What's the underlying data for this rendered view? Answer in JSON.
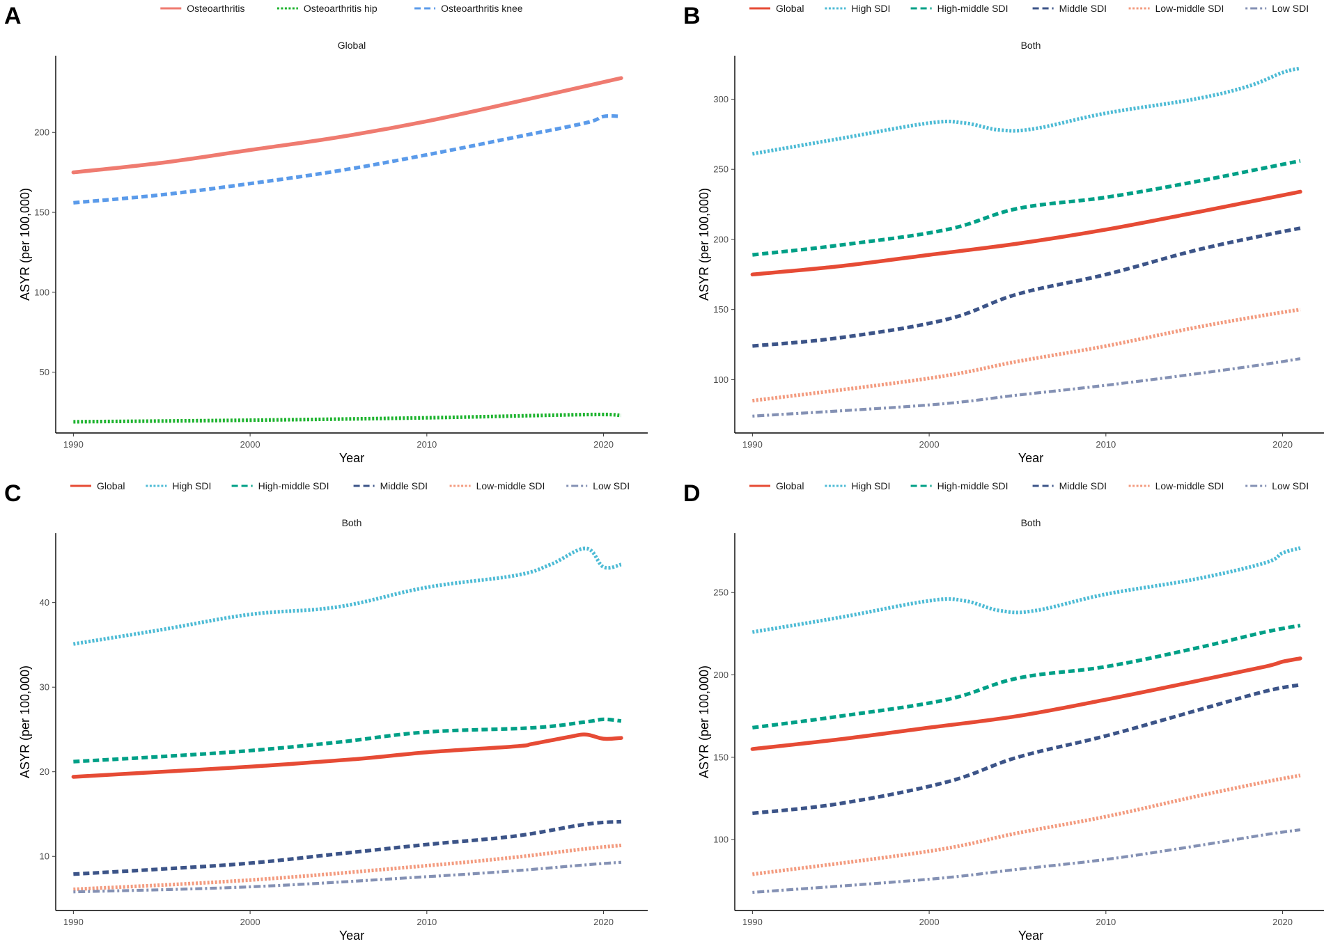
{
  "chart_data": [
    {
      "panel_label": "A",
      "type": "line",
      "facet_title": "Global",
      "xlabel": "Year",
      "ylabel": "ASYR (per 100,000)",
      "xlim": [
        1989,
        2022.5
      ],
      "ylim": [
        12,
        248
      ],
      "xticks": [
        1990,
        2000,
        2010,
        2020
      ],
      "yticks": [
        50,
        100,
        150,
        200
      ],
      "legend_position": "top",
      "series": [
        {
          "name": "Osteoarthritis",
          "color": "#ef7b70",
          "dash": "solid",
          "points": [
            [
              1990,
              175
            ],
            [
              1995,
              181
            ],
            [
              2000,
              189
            ],
            [
              2005,
              197
            ],
            [
              2010,
              207
            ],
            [
              2015,
              219
            ],
            [
              2019,
              229
            ],
            [
              2021,
              234
            ]
          ]
        },
        {
          "name": "Osteoarthritis hip",
          "color": "#1db32e",
          "dash": "dotted",
          "points": [
            [
              1990,
              19
            ],
            [
              2000,
              20
            ],
            [
              2010,
              21.5
            ],
            [
              2019,
              23.5
            ],
            [
              2021,
              23
            ]
          ]
        },
        {
          "name": "Osteoarthritis knee",
          "color": "#5b9bea",
          "dash": "dashed",
          "points": [
            [
              1990,
              156
            ],
            [
              1995,
              161
            ],
            [
              2000,
              168
            ],
            [
              2005,
              176
            ],
            [
              2010,
              186
            ],
            [
              2015,
              197
            ],
            [
              2019,
              206
            ],
            [
              2020,
              210
            ],
            [
              2021,
              210
            ]
          ]
        }
      ]
    },
    {
      "panel_label": "B",
      "type": "line",
      "facet_title": "Both",
      "xlabel": "Year",
      "ylabel": "ASYR (per 100,000)",
      "xlim": [
        1989,
        2022.5
      ],
      "ylim": [
        62,
        331
      ],
      "xticks": [
        1990,
        2000,
        2010,
        2020
      ],
      "yticks": [
        100,
        150,
        200,
        250,
        300
      ],
      "legend_position": "top",
      "series": [
        {
          "name": "Global",
          "color": "#e64b35",
          "dash": "solid",
          "points": [
            [
              1990,
              175
            ],
            [
              1995,
              181
            ],
            [
              2000,
              189
            ],
            [
              2005,
              197
            ],
            [
              2010,
              207
            ],
            [
              2015,
              219
            ],
            [
              2019,
              229
            ],
            [
              2021,
              234
            ]
          ]
        },
        {
          "name": "High SDI",
          "color": "#4dbbd5",
          "dash": "dotted",
          "points": [
            [
              1990,
              261
            ],
            [
              1995,
              272
            ],
            [
              2000,
              283
            ],
            [
              2002,
              283
            ],
            [
              2004,
              278
            ],
            [
              2006,
              279
            ],
            [
              2010,
              290
            ],
            [
              2015,
              300
            ],
            [
              2018,
              309
            ],
            [
              2020,
              319
            ],
            [
              2021,
              322
            ]
          ]
        },
        {
          "name": "High-middle SDI",
          "color": "#00a087",
          "dash": "dashed",
          "points": [
            [
              1990,
              189
            ],
            [
              1995,
              196
            ],
            [
              2001,
              207
            ],
            [
              2005,
              222
            ],
            [
              2010,
              230
            ],
            [
              2015,
              241
            ],
            [
              2019,
              251
            ],
            [
              2021,
              256
            ]
          ]
        },
        {
          "name": "Middle SDI",
          "color": "#3c5488",
          "dash": "dashed",
          "points": [
            [
              1990,
              124
            ],
            [
              1995,
              130
            ],
            [
              2001,
              143
            ],
            [
              2005,
              161
            ],
            [
              2010,
              175
            ],
            [
              2015,
              192
            ],
            [
              2019,
              203
            ],
            [
              2021,
              208
            ]
          ]
        },
        {
          "name": "Low-middle SDI",
          "color": "#f39b7f",
          "dash": "dotted",
          "points": [
            [
              1990,
              85
            ],
            [
              2000,
              101
            ],
            [
              2005,
              113
            ],
            [
              2010,
              124
            ],
            [
              2015,
              137
            ],
            [
              2019,
              146
            ],
            [
              2021,
              150
            ]
          ]
        },
        {
          "name": "Low SDI",
          "color": "#8491b4",
          "dash": "dotdash",
          "points": [
            [
              1990,
              74
            ],
            [
              2000,
              82
            ],
            [
              2005,
              89
            ],
            [
              2010,
              96
            ],
            [
              2015,
              104
            ],
            [
              2019,
              111
            ],
            [
              2021,
              115
            ]
          ]
        }
      ]
    },
    {
      "panel_label": "C",
      "type": "line",
      "facet_title": "Both",
      "xlabel": "Year",
      "ylabel": "ASYR (per 100,000)",
      "xlim": [
        1989,
        2022.5
      ],
      "ylim": [
        3.6,
        48.2
      ],
      "xticks": [
        1990,
        2000,
        2010,
        2020
      ],
      "yticks": [
        10,
        20,
        30,
        40
      ],
      "legend_position": "top",
      "series": [
        {
          "name": "Global",
          "color": "#e64b35",
          "dash": "solid",
          "points": [
            [
              1990,
              19.4
            ],
            [
              1995,
              20
            ],
            [
              2000,
              20.6
            ],
            [
              2006,
              21.5
            ],
            [
              2010,
              22.3
            ],
            [
              2015,
              23
            ],
            [
              2016,
              23.3
            ],
            [
              2018,
              24.1
            ],
            [
              2019,
              24.4
            ],
            [
              2020,
              23.9
            ],
            [
              2021,
              24
            ]
          ]
        },
        {
          "name": "High SDI",
          "color": "#4dbbd5",
          "dash": "dotted",
          "points": [
            [
              1990,
              35.1
            ],
            [
              1995,
              36.8
            ],
            [
              2000,
              38.6
            ],
            [
              2005,
              39.5
            ],
            [
              2010,
              41.8
            ],
            [
              2015,
              43.2
            ],
            [
              2017,
              44.5
            ],
            [
              2019,
              46.4
            ],
            [
              2020,
              44.2
            ],
            [
              2021,
              44.5
            ]
          ]
        },
        {
          "name": "High-middle SDI",
          "color": "#00a087",
          "dash": "dashed",
          "points": [
            [
              1990,
              21.2
            ],
            [
              1995,
              21.8
            ],
            [
              2000,
              22.5
            ],
            [
              2005,
              23.5
            ],
            [
              2010,
              24.7
            ],
            [
              2016,
              25.2
            ],
            [
              2019,
              25.9
            ],
            [
              2020,
              26.2
            ],
            [
              2021,
              26
            ]
          ]
        },
        {
          "name": "Middle SDI",
          "color": "#3c5488",
          "dash": "dashed",
          "points": [
            [
              1990,
              7.9
            ],
            [
              1995,
              8.5
            ],
            [
              2000,
              9.2
            ],
            [
              2005,
              10.3
            ],
            [
              2010,
              11.4
            ],
            [
              2015,
              12.4
            ],
            [
              2019,
              13.8
            ],
            [
              2021,
              14.1
            ]
          ]
        },
        {
          "name": "Low-middle SDI",
          "color": "#f39b7f",
          "dash": "dotted",
          "points": [
            [
              1990,
              6.1
            ],
            [
              2000,
              7.2
            ],
            [
              2010,
              8.9
            ],
            [
              2015,
              9.9
            ],
            [
              2019,
              10.9
            ],
            [
              2021,
              11.3
            ]
          ]
        },
        {
          "name": "Low SDI",
          "color": "#8491b4",
          "dash": "dotdash",
          "points": [
            [
              1990,
              5.8
            ],
            [
              2000,
              6.4
            ],
            [
              2010,
              7.6
            ],
            [
              2015,
              8.3
            ],
            [
              2019,
              9
            ],
            [
              2021,
              9.3
            ]
          ]
        }
      ]
    },
    {
      "panel_label": "D",
      "type": "line",
      "facet_title": "Both",
      "xlabel": "Year",
      "ylabel": "ASYR (per 100,000)",
      "xlim": [
        1989,
        2022.5
      ],
      "ylim": [
        57,
        286
      ],
      "xticks": [
        1990,
        2000,
        2010,
        2020
      ],
      "yticks": [
        100,
        150,
        200,
        250
      ],
      "legend_position": "top",
      "series": [
        {
          "name": "Global",
          "color": "#e64b35",
          "dash": "solid",
          "points": [
            [
              1990,
              155
            ],
            [
              1995,
              161
            ],
            [
              2000,
              168
            ],
            [
              2005,
              175
            ],
            [
              2010,
              185
            ],
            [
              2015,
              196
            ],
            [
              2019,
              205
            ],
            [
              2020,
              208
            ],
            [
              2021,
              210
            ]
          ]
        },
        {
          "name": "High SDI",
          "color": "#4dbbd5",
          "dash": "dotted",
          "points": [
            [
              1990,
              226
            ],
            [
              1995,
              235
            ],
            [
              2000,
              245
            ],
            [
              2002,
              245
            ],
            [
              2004,
              239
            ],
            [
              2006,
              239
            ],
            [
              2010,
              249
            ],
            [
              2015,
              258
            ],
            [
              2019,
              268
            ],
            [
              2020,
              274
            ],
            [
              2021,
              277
            ]
          ]
        },
        {
          "name": "High-middle SDI",
          "color": "#00a087",
          "dash": "dashed",
          "points": [
            [
              1990,
              168
            ],
            [
              1995,
              175
            ],
            [
              2001,
              185
            ],
            [
              2005,
              198
            ],
            [
              2010,
              205
            ],
            [
              2015,
              216
            ],
            [
              2019,
              226
            ],
            [
              2021,
              230
            ]
          ]
        },
        {
          "name": "Middle SDI",
          "color": "#3c5488",
          "dash": "dashed",
          "points": [
            [
              1990,
              116
            ],
            [
              1995,
              122
            ],
            [
              2001,
              135
            ],
            [
              2005,
              150
            ],
            [
              2010,
              163
            ],
            [
              2015,
              178
            ],
            [
              2019,
              190
            ],
            [
              2021,
              194
            ]
          ]
        },
        {
          "name": "Low-middle SDI",
          "color": "#f39b7f",
          "dash": "dotted",
          "points": [
            [
              1990,
              79
            ],
            [
              2000,
              93
            ],
            [
              2005,
              104
            ],
            [
              2010,
              114
            ],
            [
              2015,
              126
            ],
            [
              2019,
              135
            ],
            [
              2021,
              139
            ]
          ]
        },
        {
          "name": "Low SDI",
          "color": "#8491b4",
          "dash": "dotdash",
          "points": [
            [
              1990,
              68
            ],
            [
              2000,
              76
            ],
            [
              2005,
              82
            ],
            [
              2010,
              88
            ],
            [
              2015,
              96
            ],
            [
              2019,
              103
            ],
            [
              2021,
              106
            ]
          ]
        }
      ]
    }
  ]
}
